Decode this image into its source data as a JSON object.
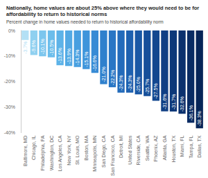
{
  "chart_data": {
    "type": "bar",
    "title": "Nationally, home values are about 25% above where they would need to be for affordability to return to historical norms",
    "subtitle": "Percent change in home values needed to return to historical affordability norm",
    "categories": [
      "Baltimore, MD",
      "Chicago, IL",
      "Philadelphia, PA",
      "Washington, DC",
      "Los Angeles, CA",
      "New York, NY",
      "St. Louis, MO",
      "Boston, MA",
      "Minneapolis, MN",
      "San Diego, CA",
      "San Francisco, CA",
      "Detroit, MI",
      "United States",
      "Riverside, CA",
      "Seattle, WA",
      "Phoenix, AZ",
      "Atlanta, GA",
      "Houston, TX",
      "Miami, FL",
      "Tampa, FL",
      "Dallas, TX"
    ],
    "values": [
      -3.7,
      -9.6,
      -10.1,
      -10.5,
      -13.6,
      -13.9,
      -14.3,
      -15.1,
      -16.6,
      -21.0,
      -22.2,
      -24.3,
      -24.3,
      -25.0,
      -25.7,
      -27.5,
      -31.6,
      -31.7,
      -32.6,
      -36.1,
      -38.3
    ],
    "value_labels": [
      "-3.7%",
      "-9.6%",
      "-10.1%",
      "-10.5%",
      "-13.6%",
      "-13.9%",
      "-14.3%",
      "-15.1%",
      "-16.6%",
      "-21.0%",
      "-22.2%",
      "-24.3%",
      "-24.3%",
      "-25.0%",
      "-25.7%",
      "-27.5%",
      "-31.6%",
      "-31.7%",
      "-32.6%",
      "-36.1%",
      "-38.3%"
    ],
    "colors": [
      "#b3e0f5",
      "#8fd0f0",
      "#7cc6ee",
      "#6bbdeb",
      "#5db3e8",
      "#52a9e4",
      "#489fe0",
      "#3f95db",
      "#378bd5",
      "#2f80cd",
      "#2976c5",
      "#236bbb",
      "#1e61b0",
      "#1a58a5",
      "#164f9a",
      "#13478f",
      "#103f84",
      "#0d3879",
      "#0b316e",
      "#092b63",
      "#072558"
    ],
    "data_labels": true,
    "ylim": [
      -40,
      0
    ],
    "yticks": [
      {
        "value": -40,
        "label": "-40%"
      },
      {
        "value": -30,
        "label": "-30%"
      },
      {
        "value": -20,
        "label": "-20%"
      },
      {
        "value": -10,
        "label": "-10%"
      },
      {
        "value": 0,
        "label": "0%"
      }
    ],
    "grid": false
  }
}
